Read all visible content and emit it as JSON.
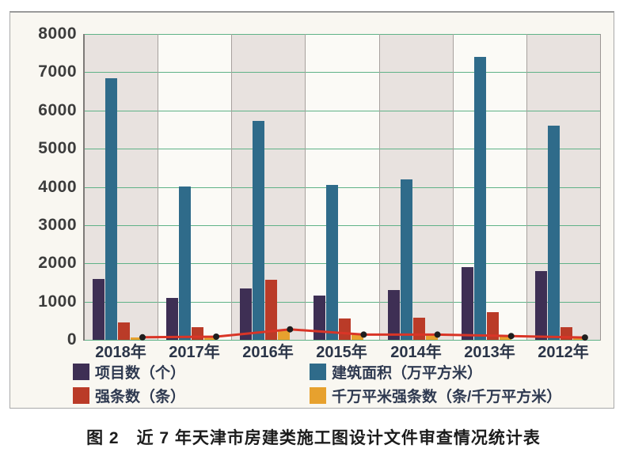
{
  "caption": "图 2　近 7 年天津市房建类施工图设计文件审查情况统计表",
  "chart_data": {
    "type": "bar",
    "categories": [
      "2018年",
      "2017年",
      "2016年",
      "2015年",
      "2014年",
      "2013年",
      "2012年"
    ],
    "series": [
      {
        "name": "项目数（个）",
        "color": "#3e2f54",
        "values": [
          1600,
          1100,
          1350,
          1150,
          1300,
          1900,
          1800
        ]
      },
      {
        "name": "建筑面积（万平方米）",
        "color": "#2f6b8a",
        "values": [
          6850,
          4000,
          5730,
          4050,
          4200,
          7400,
          5600
        ]
      },
      {
        "name": "强条数（条）",
        "color": "#ba3b28",
        "values": [
          450,
          330,
          1570,
          550,
          570,
          730,
          330
        ]
      },
      {
        "name": "千万平米强条数（条/千万平方米）",
        "color": "#e7a12e",
        "values": [
          66,
          83,
          274,
          136,
          136,
          99,
          59
        ]
      }
    ],
    "line_overlay": {
      "tracks_series": "千万平米强条数（条/千万平方米）",
      "values": [
        66,
        83,
        274,
        136,
        136,
        99,
        59
      ],
      "line_color": "#d93527",
      "marker_color": "#1e1e1e"
    },
    "ylim": [
      0,
      8000
    ],
    "yticks": [
      "8000",
      "7000",
      "6000",
      "5000",
      "4000",
      "3000",
      "2000",
      "1000",
      "0"
    ],
    "grid": "horizontal",
    "grid_color": "#5fb287",
    "band_colors": [
      "#e8e2df",
      "#fbfaf6"
    ],
    "legend_position": "bottom",
    "xlabel": "",
    "ylabel": ""
  }
}
